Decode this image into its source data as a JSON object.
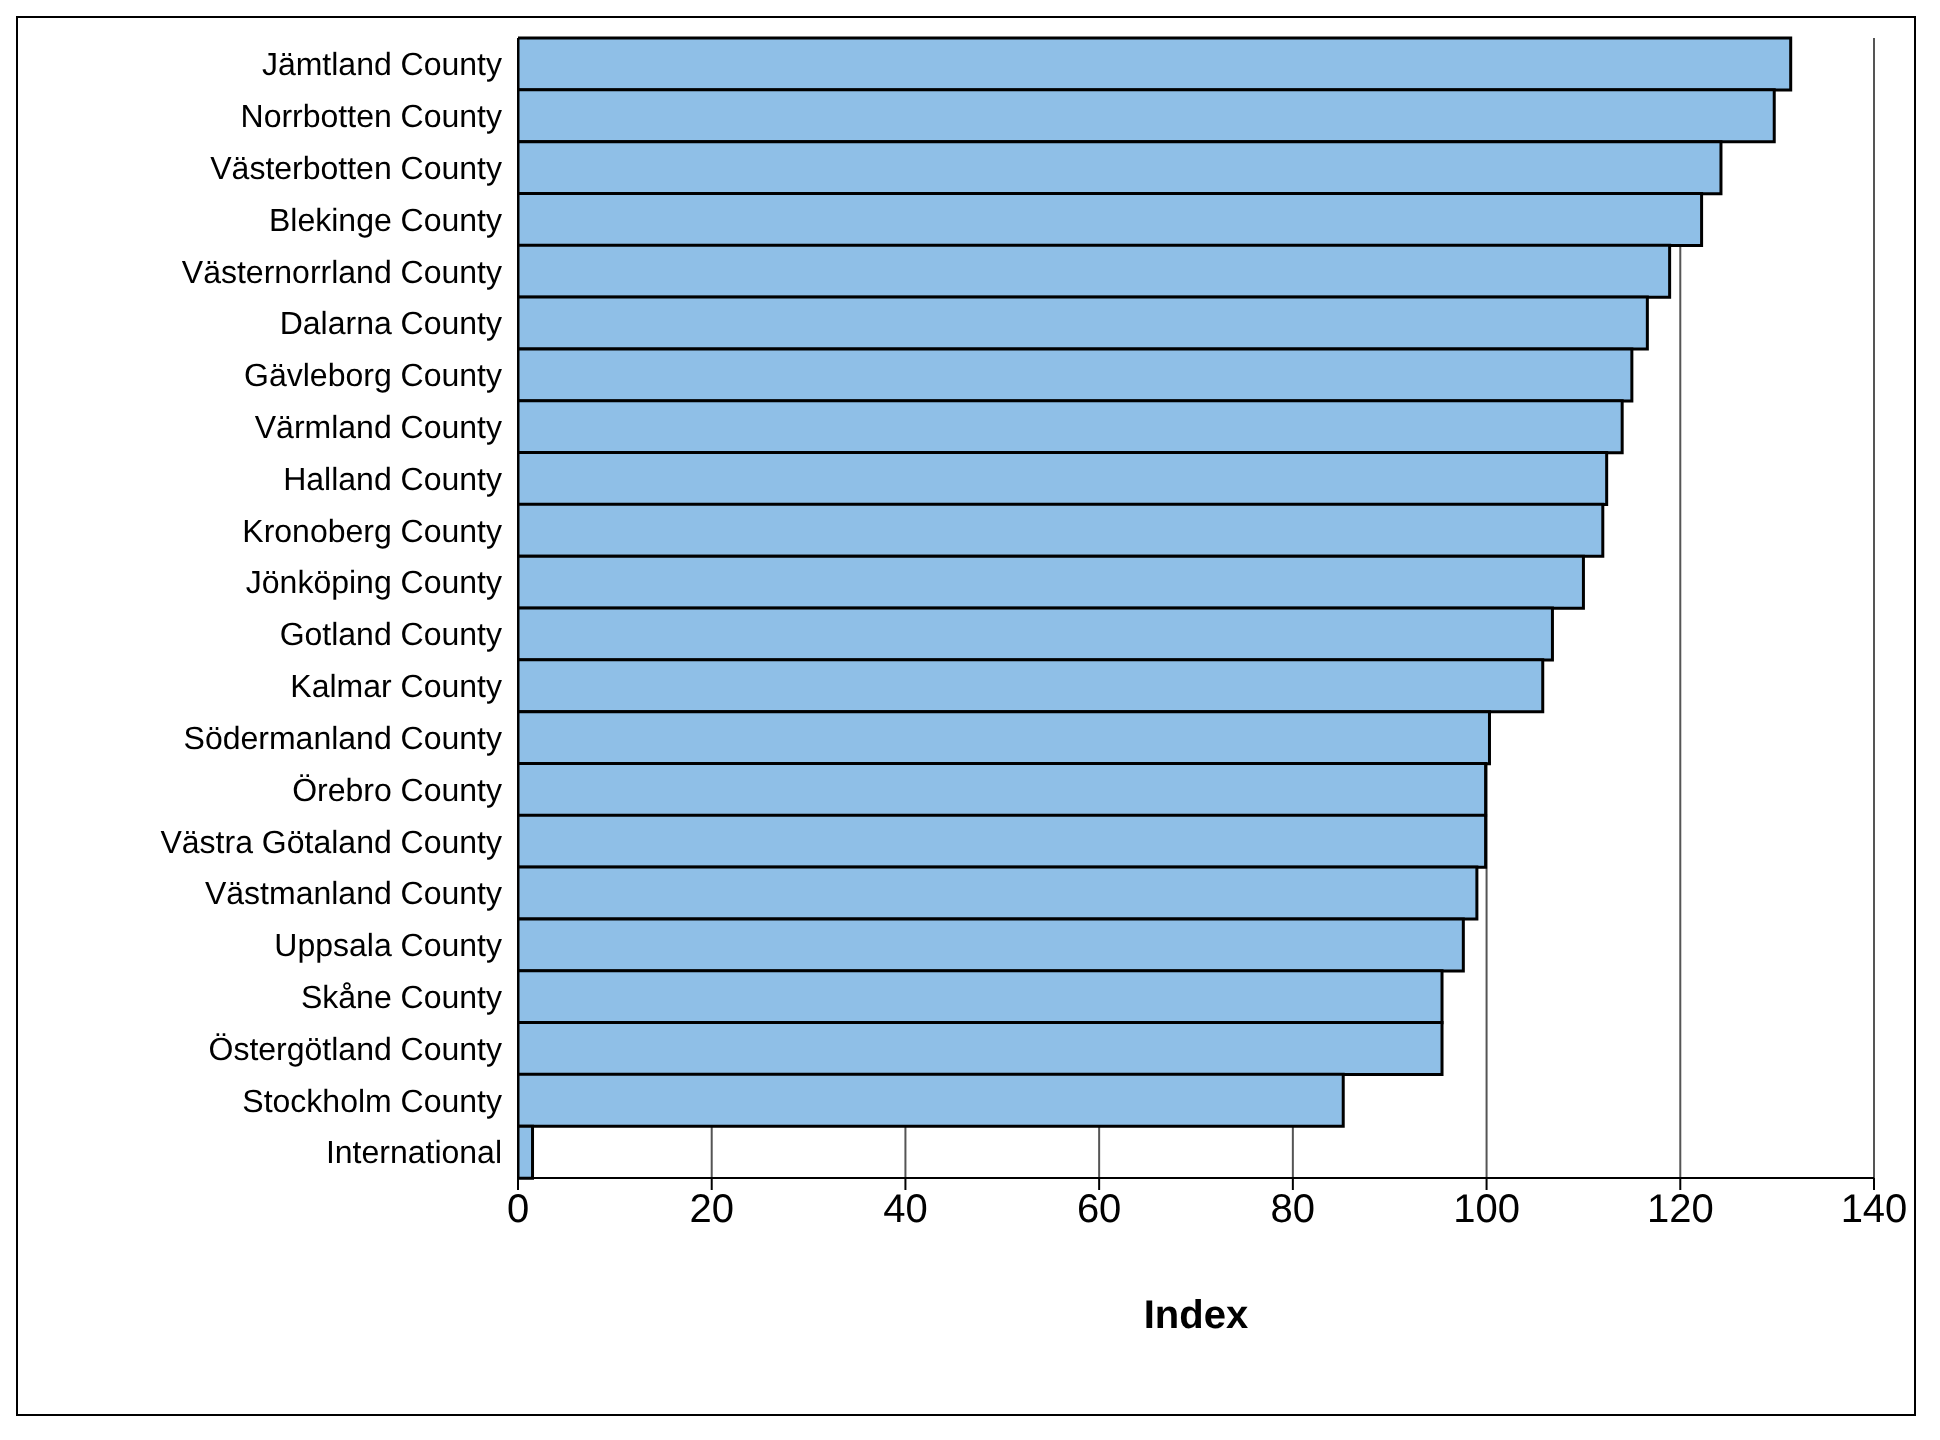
{
  "chart_data": {
    "type": "bar",
    "orientation": "horizontal",
    "xlabel": "Index",
    "categories": [
      "Jämtland County",
      "Norrbotten County",
      "Västerbotten County",
      "Blekinge County",
      "Västernorrland County",
      "Dalarna County",
      "Gävleborg County",
      "Värmland County",
      "Halland County",
      "Kronoberg County",
      "Jönköping County",
      "Gotland County",
      "Kalmar County",
      "Södermanland County",
      "Örebro County",
      "Västra Götaland County",
      "Västmanland County",
      "Uppsala County",
      "Skåne County",
      "Östergötland County",
      "Stockholm County",
      "International"
    ],
    "values": [
      131.4,
      129.7,
      124.2,
      122.2,
      118.9,
      116.6,
      115.0,
      114.0,
      112.4,
      112.0,
      110.0,
      106.8,
      105.8,
      100.3,
      99.9,
      99.9,
      99.0,
      97.6,
      95.4,
      95.4,
      85.2,
      1.5
    ],
    "color": "#8fbfe7",
    "xlim": [
      0,
      140
    ],
    "xticks": [
      0,
      20,
      40,
      60,
      80,
      100,
      120,
      140
    ],
    "grid": "x",
    "legend": false
  }
}
